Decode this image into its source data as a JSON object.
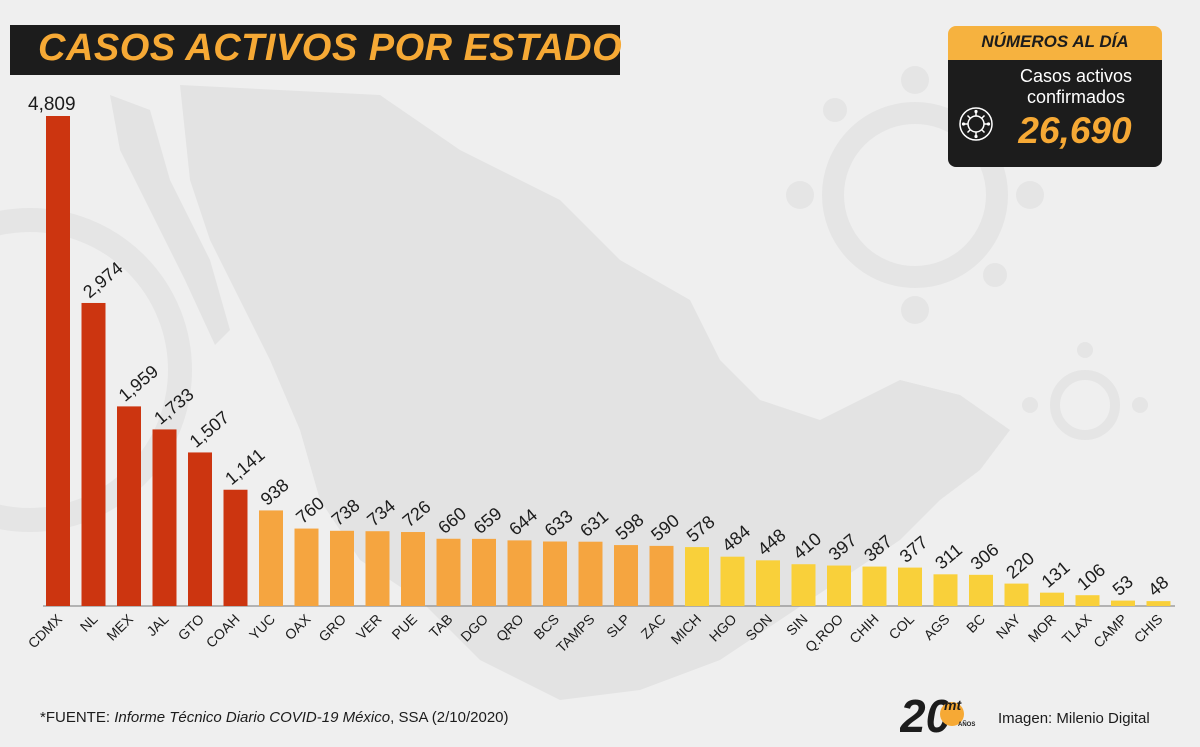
{
  "colors": {
    "high": "#cc3510",
    "mid": "#f5a540",
    "low": "#f9d03a",
    "dark": "#1c1c1c",
    "accent": "#f6a935",
    "map": "#e3e3e3",
    "virus": "#e5e5e5"
  },
  "chart_data": {
    "type": "bar",
    "title": "CASOS ACTIVOS POR ESTADO",
    "categories": [
      "CDMX",
      "NL",
      "MEX",
      "JAL",
      "GTO",
      "COAH",
      "YUC",
      "OAX",
      "GRO",
      "VER",
      "PUE",
      "TAB",
      "DGO",
      "QRO",
      "BCS",
      "TAMPS",
      "SLP",
      "ZAC",
      "MICH",
      "HGO",
      "SON",
      "SIN",
      "Q.ROO",
      "CHIH",
      "COL",
      "AGS",
      "BC",
      "NAY",
      "MOR",
      "TLAX",
      "CAMP",
      "CHIS"
    ],
    "values": [
      4809,
      2974,
      1959,
      1733,
      1507,
      1141,
      938,
      760,
      738,
      734,
      726,
      660,
      659,
      644,
      633,
      631,
      598,
      590,
      578,
      484,
      448,
      410,
      397,
      387,
      377,
      311,
      306,
      220,
      131,
      106,
      53,
      48
    ],
    "labels": [
      "4,809",
      "2,974",
      "1,959",
      "1,733",
      "1,507",
      "1,141",
      "938",
      "760",
      "738",
      "734",
      "726",
      "660",
      "659",
      "644",
      "633",
      "631",
      "598",
      "590",
      "578",
      "484",
      "448",
      "410",
      "397",
      "387",
      "377",
      "311",
      "306",
      "220",
      "131",
      "106",
      "53",
      "48"
    ],
    "color_groups": [
      "high",
      "high",
      "high",
      "high",
      "high",
      "high",
      "mid",
      "mid",
      "mid",
      "mid",
      "mid",
      "mid",
      "mid",
      "mid",
      "mid",
      "mid",
      "mid",
      "mid",
      "low",
      "low",
      "low",
      "low",
      "low",
      "low",
      "low",
      "low",
      "low",
      "low",
      "low",
      "low",
      "low",
      "low"
    ],
    "ylim": [
      0,
      4809
    ],
    "xlabel": "",
    "ylabel": "",
    "grid": false,
    "legend": "none"
  },
  "panel": {
    "heading": "NÚMEROS AL DÍA",
    "subtitle_line1": "Casos activos",
    "subtitle_line2": "confirmados",
    "total": "26,690"
  },
  "footer": {
    "prefix": "*FUENTE: ",
    "report": "Informe Técnico Diario COVID-19 México",
    "suffix": ", SSA (2/10/2020)"
  },
  "credit": "Imagen: Milenio Digital",
  "logo": {
    "number": "20",
    "brand": "mt",
    "years": "AÑOS"
  }
}
